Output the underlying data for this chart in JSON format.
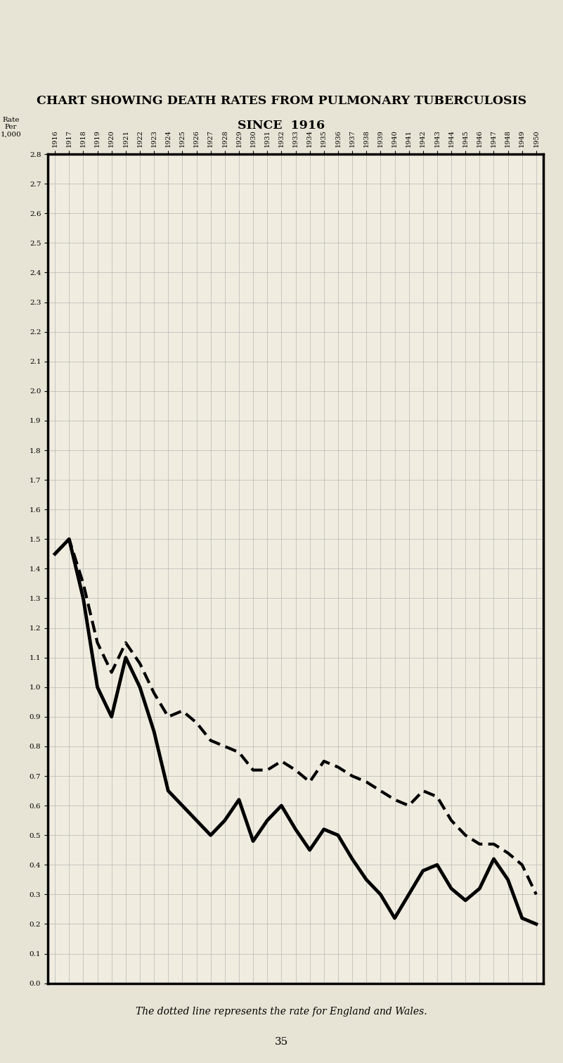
{
  "title_line1": "CHART SHOWING DEATH RATES FROM PULMONARY TUBERCULOSIS",
  "title_line2": "SINCE  1916",
  "ylabel": "Rate\nPer\n1,000",
  "years": [
    1916,
    1917,
    1918,
    1919,
    1920,
    1921,
    1922,
    1923,
    1924,
    1925,
    1926,
    1927,
    1928,
    1929,
    1930,
    1931,
    1932,
    1933,
    1934,
    1935,
    1936,
    1937,
    1938,
    1939,
    1940,
    1941,
    1942,
    1943,
    1944,
    1945,
    1946,
    1947,
    1948,
    1949,
    1950
  ],
  "solid_line": [
    1.45,
    1.5,
    1.3,
    1.0,
    0.9,
    1.1,
    1.0,
    0.85,
    0.65,
    0.6,
    0.55,
    0.5,
    0.55,
    0.62,
    0.48,
    0.55,
    0.6,
    0.52,
    0.45,
    0.52,
    0.5,
    0.42,
    0.35,
    0.3,
    0.22,
    0.3,
    0.38,
    0.4,
    0.32,
    0.28,
    0.32,
    0.42,
    0.35,
    0.22,
    0.2
  ],
  "dotted_line": [
    1.45,
    1.5,
    1.35,
    1.15,
    1.05,
    1.15,
    1.08,
    0.98,
    0.9,
    0.92,
    0.88,
    0.82,
    0.8,
    0.78,
    0.72,
    0.72,
    0.75,
    0.72,
    0.68,
    0.75,
    0.73,
    0.7,
    0.68,
    0.65,
    0.62,
    0.6,
    0.65,
    0.63,
    0.55,
    0.5,
    0.47,
    0.47,
    0.44,
    0.4,
    0.3
  ],
  "ylim": [
    0.0,
    2.8
  ],
  "ytick_step": 0.1,
  "bg_color": "#f0ece0",
  "page_color": "#e8e4d5",
  "grid_color": "#aaaaaa",
  "caption": "The dotted line represents the rate for England and Wales."
}
